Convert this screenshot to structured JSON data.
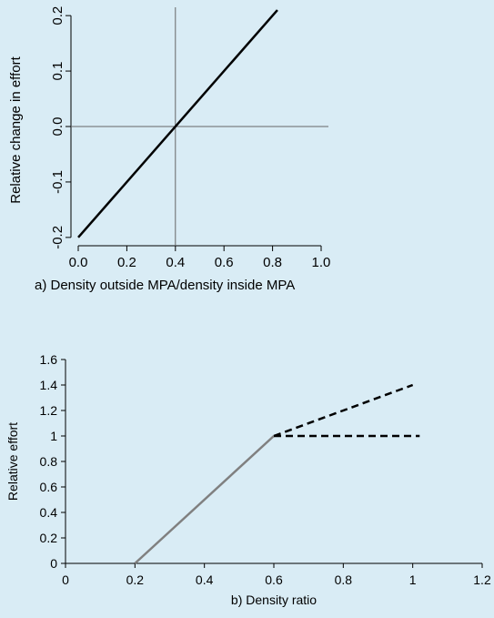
{
  "chart_data": [
    {
      "type": "line",
      "title": "",
      "xlabel": "a) Density outside MPA/density inside MPA",
      "ylabel": "Relative change in effort",
      "xlim": [
        -0.03,
        1.03
      ],
      "ylim": [
        -0.215,
        0.215
      ],
      "x_ticks": [
        "0.0",
        "0.2",
        "0.4",
        "0.6",
        "0.8",
        "1.0"
      ],
      "y_ticks": [
        "-0.2",
        "-0.1",
        "0.0",
        "0.1",
        "0.2"
      ],
      "reference_lines": {
        "x": 0.4,
        "y": 0.0
      },
      "grid": false,
      "series": [
        {
          "style": "solid",
          "color": "#000000",
          "x": [
            0.0,
            0.82
          ],
          "y": [
            -0.2,
            0.21
          ]
        }
      ]
    },
    {
      "type": "line",
      "title": "",
      "xlabel": "b) Density ratio",
      "ylabel": "Relative effort",
      "xlim": [
        0,
        1.2
      ],
      "ylim": [
        0,
        1.6
      ],
      "x_ticks": [
        "0",
        "0.2",
        "0.4",
        "0.6",
        "0.8",
        "1",
        "1.2"
      ],
      "y_ticks": [
        "0",
        "0.2",
        "0.4",
        "0.6",
        "0.8",
        "1",
        "1.2",
        "1.4",
        "1.6"
      ],
      "grid": false,
      "series": [
        {
          "style": "solid",
          "color": "#808080",
          "x": [
            0.2,
            0.6
          ],
          "y": [
            0.0,
            1.0
          ]
        },
        {
          "style": "dashed",
          "color": "#000000",
          "x": [
            0.6,
            1.0
          ],
          "y": [
            1.0,
            1.4
          ]
        },
        {
          "style": "dashed",
          "color": "#000000",
          "x": [
            0.6,
            1.02
          ],
          "y": [
            1.0,
            1.0
          ]
        }
      ]
    }
  ]
}
